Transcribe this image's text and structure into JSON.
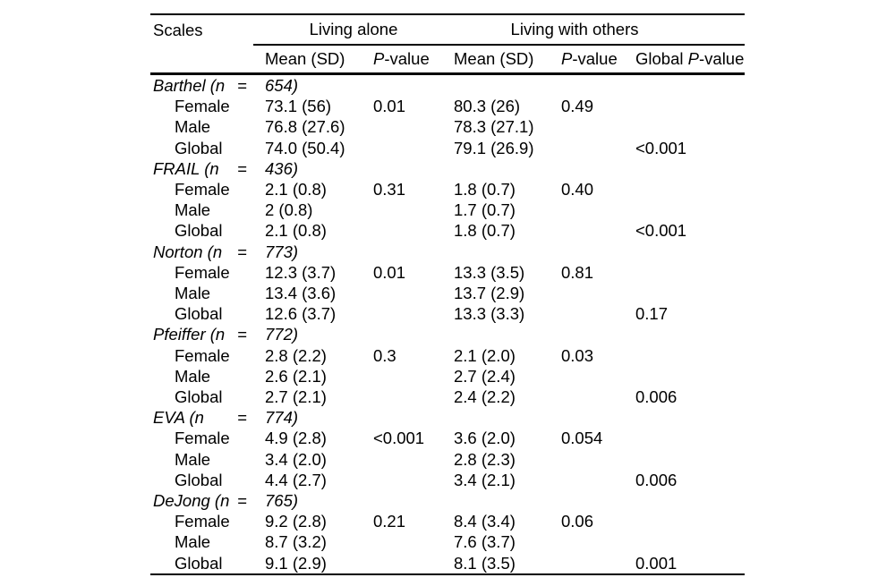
{
  "colors": {
    "text": "#000000",
    "rule": "#000000",
    "background": "#ffffff"
  },
  "header": {
    "scales": "Scales",
    "living_alone": "Living alone",
    "living_with_others": "Living with others",
    "mean_sd": "Mean (SD)",
    "p_label_italic": "P",
    "p_label_suffix": "-value",
    "global_p_prefix": "Global"
  },
  "scales": [
    {
      "name": "Barthel (n",
      "eq": "=",
      "n": "654)",
      "rows": [
        {
          "label": "Female",
          "mean1": "73.1 (56)",
          "p1": "0.01",
          "mean2": "80.3 (26)",
          "p2": "0.49",
          "global": ""
        },
        {
          "label": "Male",
          "mean1": "76.8 (27.6)",
          "p1": "",
          "mean2": "78.3 (27.1)",
          "p2": "",
          "global": ""
        },
        {
          "label": "Global",
          "mean1": "74.0 (50.4)",
          "p1": "",
          "mean2": "79.1 (26.9)",
          "p2": "",
          "global": "<0.001"
        }
      ]
    },
    {
      "name": "FRAIL (n",
      "eq": "=",
      "n": "436)",
      "rows": [
        {
          "label": "Female",
          "mean1": "2.1 (0.8)",
          "p1": "0.31",
          "mean2": "1.8 (0.7)",
          "p2": "0.40",
          "global": ""
        },
        {
          "label": "Male",
          "mean1": "2 (0.8)",
          "p1": "",
          "mean2": "1.7 (0.7)",
          "p2": "",
          "global": ""
        },
        {
          "label": "Global",
          "mean1": "2.1 (0.8)",
          "p1": "",
          "mean2": "1.8 (0.7)",
          "p2": "",
          "global": "<0.001"
        }
      ]
    },
    {
      "name": "Norton (n",
      "eq": "=",
      "n": "773)",
      "rows": [
        {
          "label": "Female",
          "mean1": "12.3 (3.7)",
          "p1": "0.01",
          "mean2": "13.3 (3.5)",
          "p2": "0.81",
          "global": ""
        },
        {
          "label": "Male",
          "mean1": "13.4 (3.6)",
          "p1": "",
          "mean2": "13.7 (2.9)",
          "p2": "",
          "global": ""
        },
        {
          "label": "Global",
          "mean1": "12.6 (3.7)",
          "p1": "",
          "mean2": "13.3 (3.3)",
          "p2": "",
          "global": "0.17"
        }
      ]
    },
    {
      "name": "Pfeiffer (n",
      "eq": "=",
      "n": "772)",
      "rows": [
        {
          "label": "Female",
          "mean1": "2.8 (2.2)",
          "p1": "0.3",
          "mean2": "2.1 (2.0)",
          "p2": "0.03",
          "global": ""
        },
        {
          "label": "Male",
          "mean1": "2.6 (2.1)",
          "p1": "",
          "mean2": "2.7 (2.4)",
          "p2": "",
          "global": ""
        },
        {
          "label": "Global",
          "mean1": "2.7 (2.1)",
          "p1": "",
          "mean2": "2.4 (2.2)",
          "p2": "",
          "global": "0.006"
        }
      ]
    },
    {
      "name": "EVA (n",
      "eq": "=",
      "n": "774)",
      "rows": [
        {
          "label": "Female",
          "mean1": "4.9 (2.8)",
          "p1": "<0.001",
          "mean2": "3.6 (2.0)",
          "p2": "0.054",
          "global": ""
        },
        {
          "label": "Male",
          "mean1": "3.4 (2.0)",
          "p1": "",
          "mean2": "2.8 (2.3)",
          "p2": "",
          "global": ""
        },
        {
          "label": "Global",
          "mean1": "4.4 (2.7)",
          "p1": "",
          "mean2": "3.4 (2.1)",
          "p2": "",
          "global": "0.006"
        }
      ]
    },
    {
      "name": "DeJong (n",
      "eq": "=",
      "n": "765)",
      "rows": [
        {
          "label": "Female",
          "mean1": "9.2 (2.8)",
          "p1": "0.21",
          "mean2": "8.4 (3.4)",
          "p2": "0.06",
          "global": ""
        },
        {
          "label": "Male",
          "mean1": "8.7 (3.2)",
          "p1": "",
          "mean2": "7.6 (3.7)",
          "p2": "",
          "global": ""
        },
        {
          "label": "Global",
          "mean1": "9.1 (2.9)",
          "p1": "",
          "mean2": "8.1 (3.5)",
          "p2": "",
          "global": "0.001"
        }
      ]
    }
  ]
}
